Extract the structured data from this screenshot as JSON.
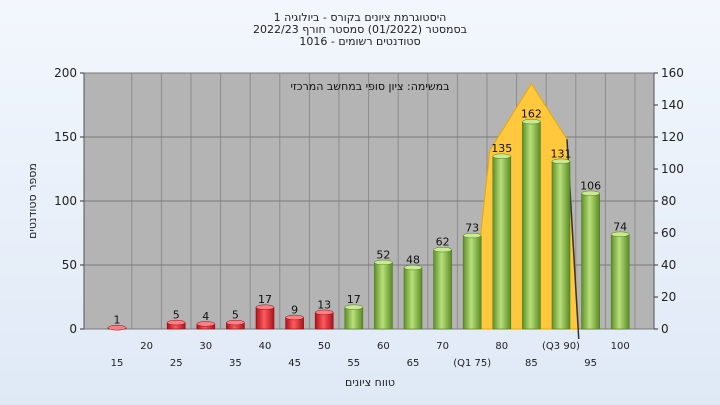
{
  "titles": [
    "היסטוגרמת ציונים בקורס - ביולוגיה 1",
    "בסמסטר (01/2022) סמסטר חורף 2022/23",
    "סטודנטים רשומים - 1016"
  ],
  "chart_data": {
    "type": "bar",
    "annotation": "במשימה: ציון סופי במחשב המרכזי",
    "xlabel": "טווח ציונים",
    "ylabel": "מספר סטודנטים",
    "ylim_left": [
      0,
      200
    ],
    "ylim_right": [
      0,
      160
    ],
    "yticks_left": [
      "0",
      "50",
      "100",
      "150",
      "200"
    ],
    "yticks_right": [
      "0",
      "20",
      "40",
      "60",
      "80",
      "100",
      "120",
      "140",
      "160"
    ],
    "categories": [
      "15",
      "20",
      "25",
      "30",
      "35",
      "40",
      "45",
      "50",
      "55",
      "60",
      "65",
      "70",
      "75",
      "80",
      "85",
      "90",
      "95",
      "100"
    ],
    "x_labels": [
      "15",
      "20",
      "25",
      "30",
      "35",
      "40",
      "45",
      "50",
      "55",
      "60",
      "65",
      "70",
      "(Q1 75)",
      "80",
      "85",
      "(Q3 90)",
      "95",
      "100"
    ],
    "values": [
      1,
      0,
      5,
      4,
      5,
      17,
      9,
      13,
      17,
      52,
      48,
      62,
      73,
      135,
      162,
      131,
      106,
      74
    ],
    "value_labels": [
      "1",
      "",
      "5",
      "4",
      "5",
      "17",
      "9",
      "13",
      "17",
      "52",
      "48",
      "62",
      "73",
      "135",
      "162",
      "131",
      "106",
      "74"
    ],
    "colors": {
      "fail": "#d9232a",
      "pass": "#7fb23f",
      "quartile_area": "#ffc83d"
    },
    "grid": true
  }
}
